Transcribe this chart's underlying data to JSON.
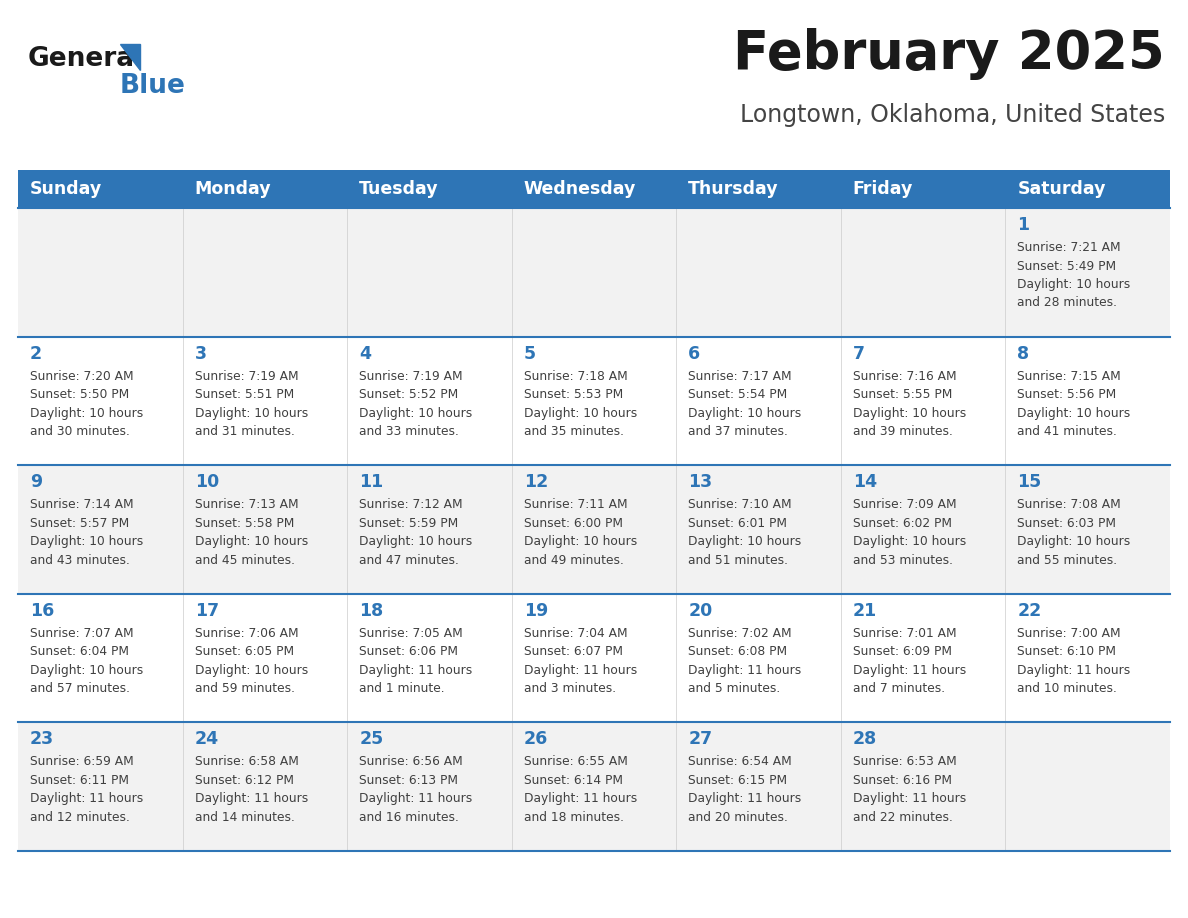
{
  "title": "February 2025",
  "subtitle": "Longtown, Oklahoma, United States",
  "days_of_week": [
    "Sunday",
    "Monday",
    "Tuesday",
    "Wednesday",
    "Thursday",
    "Friday",
    "Saturday"
  ],
  "header_bg": "#2E75B6",
  "header_text": "#FFFFFF",
  "row_bg_odd": "#F2F2F2",
  "row_bg_even": "#FFFFFF",
  "cell_border_color": "#2E75B6",
  "day_number_color": "#2E75B6",
  "text_color": "#404040",
  "title_color": "#1a1a1a",
  "subtitle_color": "#444444",
  "logo_general_color": "#1a1a1a",
  "logo_blue_color": "#2E75B6",
  "weeks": [
    [
      null,
      null,
      null,
      null,
      null,
      null,
      1
    ],
    [
      2,
      3,
      4,
      5,
      6,
      7,
      8
    ],
    [
      9,
      10,
      11,
      12,
      13,
      14,
      15
    ],
    [
      16,
      17,
      18,
      19,
      20,
      21,
      22
    ],
    [
      23,
      24,
      25,
      26,
      27,
      28,
      null
    ]
  ],
  "day_info": {
    "1": "Sunrise: 7:21 AM\nSunset: 5:49 PM\nDaylight: 10 hours\nand 28 minutes.",
    "2": "Sunrise: 7:20 AM\nSunset: 5:50 PM\nDaylight: 10 hours\nand 30 minutes.",
    "3": "Sunrise: 7:19 AM\nSunset: 5:51 PM\nDaylight: 10 hours\nand 31 minutes.",
    "4": "Sunrise: 7:19 AM\nSunset: 5:52 PM\nDaylight: 10 hours\nand 33 minutes.",
    "5": "Sunrise: 7:18 AM\nSunset: 5:53 PM\nDaylight: 10 hours\nand 35 minutes.",
    "6": "Sunrise: 7:17 AM\nSunset: 5:54 PM\nDaylight: 10 hours\nand 37 minutes.",
    "7": "Sunrise: 7:16 AM\nSunset: 5:55 PM\nDaylight: 10 hours\nand 39 minutes.",
    "8": "Sunrise: 7:15 AM\nSunset: 5:56 PM\nDaylight: 10 hours\nand 41 minutes.",
    "9": "Sunrise: 7:14 AM\nSunset: 5:57 PM\nDaylight: 10 hours\nand 43 minutes.",
    "10": "Sunrise: 7:13 AM\nSunset: 5:58 PM\nDaylight: 10 hours\nand 45 minutes.",
    "11": "Sunrise: 7:12 AM\nSunset: 5:59 PM\nDaylight: 10 hours\nand 47 minutes.",
    "12": "Sunrise: 7:11 AM\nSunset: 6:00 PM\nDaylight: 10 hours\nand 49 minutes.",
    "13": "Sunrise: 7:10 AM\nSunset: 6:01 PM\nDaylight: 10 hours\nand 51 minutes.",
    "14": "Sunrise: 7:09 AM\nSunset: 6:02 PM\nDaylight: 10 hours\nand 53 minutes.",
    "15": "Sunrise: 7:08 AM\nSunset: 6:03 PM\nDaylight: 10 hours\nand 55 minutes.",
    "16": "Sunrise: 7:07 AM\nSunset: 6:04 PM\nDaylight: 10 hours\nand 57 minutes.",
    "17": "Sunrise: 7:06 AM\nSunset: 6:05 PM\nDaylight: 10 hours\nand 59 minutes.",
    "18": "Sunrise: 7:05 AM\nSunset: 6:06 PM\nDaylight: 11 hours\nand 1 minute.",
    "19": "Sunrise: 7:04 AM\nSunset: 6:07 PM\nDaylight: 11 hours\nand 3 minutes.",
    "20": "Sunrise: 7:02 AM\nSunset: 6:08 PM\nDaylight: 11 hours\nand 5 minutes.",
    "21": "Sunrise: 7:01 AM\nSunset: 6:09 PM\nDaylight: 11 hours\nand 7 minutes.",
    "22": "Sunrise: 7:00 AM\nSunset: 6:10 PM\nDaylight: 11 hours\nand 10 minutes.",
    "23": "Sunrise: 6:59 AM\nSunset: 6:11 PM\nDaylight: 11 hours\nand 12 minutes.",
    "24": "Sunrise: 6:58 AM\nSunset: 6:12 PM\nDaylight: 11 hours\nand 14 minutes.",
    "25": "Sunrise: 6:56 AM\nSunset: 6:13 PM\nDaylight: 11 hours\nand 16 minutes.",
    "26": "Sunrise: 6:55 AM\nSunset: 6:14 PM\nDaylight: 11 hours\nand 18 minutes.",
    "27": "Sunrise: 6:54 AM\nSunset: 6:15 PM\nDaylight: 11 hours\nand 20 minutes.",
    "28": "Sunrise: 6:53 AM\nSunset: 6:16 PM\nDaylight: 11 hours\nand 22 minutes."
  }
}
